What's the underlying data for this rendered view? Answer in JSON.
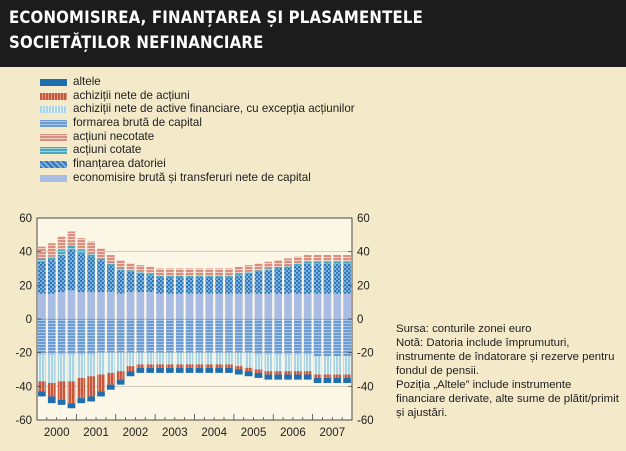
{
  "title": {
    "line1": "ECONOMISIREA, FINANȚAREA ȘI PLASAMENTELE",
    "line2": "SOCIETĂȚILOR NEFINANCIARE"
  },
  "colors": {
    "background": "#f4e9c9",
    "title_band": "#1c1c1c",
    "altele": "#1f6fb0",
    "achizitii_actiuni": "#c4573c",
    "achizitii_active": "#bfe0ea",
    "formarea_bruta": "#7aa7d6",
    "actiuni_necotate": "#e3a99a",
    "actiuni_cotate": "#61b2c4",
    "finantarea_datoriei": "#2f79ba",
    "economisire_bruta": "#a8bce4"
  },
  "chart_data": {
    "type": "bar",
    "stacked": true,
    "x_labels": [
      "2000",
      "2001",
      "2002",
      "2003",
      "2004",
      "2005",
      "2006",
      "2007"
    ],
    "quarters": [
      "2000Q1",
      "2000Q2",
      "2000Q3",
      "2000Q4",
      "2001Q1",
      "2001Q2",
      "2001Q3",
      "2001Q4",
      "2002Q1",
      "2002Q2",
      "2002Q3",
      "2002Q4",
      "2003Q1",
      "2003Q2",
      "2003Q3",
      "2003Q4",
      "2004Q1",
      "2004Q2",
      "2004Q3",
      "2004Q4",
      "2005Q1",
      "2005Q2",
      "2005Q3",
      "2005Q4",
      "2006Q1",
      "2006Q2",
      "2006Q3",
      "2006Q4",
      "2007Q1",
      "2007Q2",
      "2007Q3",
      "2007Q4"
    ],
    "ylim": [
      -60,
      60
    ],
    "yticks": [
      -60,
      -40,
      -20,
      0,
      20,
      40,
      60
    ],
    "ytick_labels": [
      "-60",
      "-40",
      "-20",
      "0",
      "20",
      "40",
      "60"
    ],
    "legend": [
      "altele",
      "achiziții nete de acțiuni",
      "achiziții nete de active financiare, cu excepția acțiunilor",
      "formarea brută de capital",
      "acțiuni necotate",
      "acțiuni cotate",
      "finanțarea datoriei",
      "economisire brută și transferuri nete de capital"
    ],
    "positive_series": [
      {
        "name": "economisire brută și transferuri nete de capital",
        "values": [
          15,
          15,
          16,
          17,
          16,
          16,
          16,
          16,
          15,
          16,
          16,
          16,
          15,
          15,
          15,
          15,
          15,
          15,
          15,
          15,
          15,
          15,
          15,
          15,
          15,
          15,
          15,
          15,
          15,
          15,
          15,
          15
        ]
      },
      {
        "name": "finanțarea datoriei",
        "values": [
          19,
          20,
          22,
          24,
          23,
          21,
          19,
          16,
          14,
          12,
          11,
          10,
          10,
          10,
          10,
          10,
          10,
          10,
          10,
          10,
          11,
          12,
          13,
          14,
          15,
          16,
          17,
          18,
          18,
          18,
          18,
          18
        ]
      },
      {
        "name": "acțiuni cotate",
        "values": [
          2,
          2,
          3,
          3,
          2,
          2,
          1,
          1,
          1,
          1,
          1,
          1,
          1,
          1,
          1,
          1,
          1,
          1,
          1,
          1,
          1,
          1,
          1,
          1,
          1,
          1,
          1,
          1,
          1,
          1,
          1,
          1
        ]
      },
      {
        "name": "acțiuni necotate",
        "values": [
          7,
          8,
          8,
          8,
          7,
          7,
          6,
          5,
          5,
          4,
          4,
          4,
          4,
          4,
          4,
          4,
          4,
          4,
          4,
          4,
          4,
          4,
          4,
          4,
          4,
          4,
          4,
          4,
          4,
          4,
          4,
          4
        ]
      }
    ],
    "negative_series": [
      {
        "name": "formarea brută de capital",
        "values": [
          -21,
          -21,
          -21,
          -21,
          -21,
          -21,
          -20,
          -20,
          -20,
          -20,
          -20,
          -20,
          -20,
          -20,
          -20,
          -20,
          -20,
          -20,
          -20,
          -20,
          -20,
          -20,
          -21,
          -21,
          -21,
          -21,
          -21,
          -21,
          -22,
          -22,
          -22,
          -22
        ]
      },
      {
        "name": "achiziții nete de active financiare, cu excepția acțiunilor",
        "values": [
          -16,
          -17,
          -16,
          -16,
          -14,
          -13,
          -13,
          -12,
          -11,
          -8,
          -7,
          -7,
          -7,
          -7,
          -7,
          -7,
          -7,
          -7,
          -7,
          -7,
          -8,
          -9,
          -9,
          -10,
          -10,
          -10,
          -10,
          -10,
          -11,
          -11,
          -11,
          -11
        ]
      },
      {
        "name": "achiziții nete de acțiuni",
        "values": [
          -6,
          -8,
          -11,
          -13,
          -12,
          -12,
          -10,
          -7,
          -5,
          -3,
          -2,
          -2,
          -2,
          -2,
          -2,
          -2,
          -2,
          -2,
          -2,
          -2,
          -2,
          -2,
          -2,
          -2,
          -2,
          -2,
          -2,
          -2,
          -2,
          -2,
          -2,
          -2
        ]
      },
      {
        "name": "altele",
        "values": [
          -3,
          -4,
          -3,
          -3,
          -3,
          -3,
          -3,
          -3,
          -3,
          -3,
          -3,
          -3,
          -3,
          -3,
          -3,
          -3,
          -3,
          -3,
          -3,
          -3,
          -3,
          -3,
          -3,
          -3,
          -3,
          -3,
          -3,
          -3,
          -3,
          -3,
          -3,
          -3
        ]
      }
    ]
  },
  "notes": {
    "source": "Sursa: conturile zonei euro",
    "note": "Notă: Datoria include împrumuturi, instrumente de îndatorare și rezerve pentru fondul de pensii.",
    "other": "Poziția „Altele” include instrumente financiare derivate, alte sume de plătit/primit și ajustări."
  }
}
